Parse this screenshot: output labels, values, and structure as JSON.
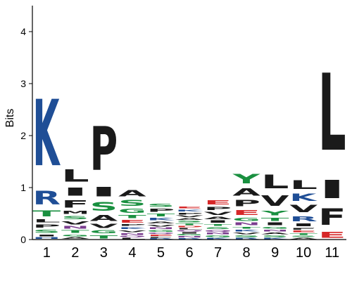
{
  "chart_data": {
    "type": "sequence-logo",
    "ylabel": "Bits",
    "ylim": [
      0,
      4.5
    ],
    "y_ticks": [
      "0",
      "1",
      "2",
      "3",
      "4"
    ],
    "grid": false,
    "legend": "none",
    "colors": {
      "basic": "#1f4e96",
      "hydrophobic": "#1a1a1a",
      "polar": "#1a9040",
      "acidic": "#d62728",
      "amide": "#7a3c8e"
    },
    "residue_class": {
      "K": "basic",
      "R": "basic",
      "H": "basic",
      "L": "hydrophobic",
      "I": "hydrophobic",
      "P": "hydrophobic",
      "F": "hydrophobic",
      "M": "hydrophobic",
      "A": "hydrophobic",
      "V": "hydrophobic",
      "W": "hydrophobic",
      "S": "polar",
      "T": "polar",
      "G": "polar",
      "Y": "polar",
      "C": "polar",
      "N": "amide",
      "Q": "amide",
      "E": "acidic",
      "D": "acidic"
    },
    "positions": [
      {
        "label": "1",
        "letters": [
          {
            "aa": "K",
            "bits": 2.05
          },
          {
            "aa": "R",
            "bits": 0.42
          },
          {
            "aa": "T",
            "bits": 0.18
          },
          {
            "aa": "S",
            "bits": 0.1
          },
          {
            "aa": "P",
            "bits": 0.1
          },
          {
            "aa": "L",
            "bits": 0.1
          },
          {
            "aa": "I",
            "bits": 0.06
          },
          {
            "aa": "H",
            "bits": 0.05
          }
        ]
      },
      {
        "label": "2",
        "letters": [
          {
            "aa": "L",
            "bits": 0.38
          },
          {
            "aa": "I",
            "bits": 0.25
          },
          {
            "aa": "F",
            "bits": 0.22
          },
          {
            "aa": "V",
            "bits": 0.1
          },
          {
            "aa": "S",
            "bits": 0.1
          },
          {
            "aa": "T",
            "bits": 0.08
          },
          {
            "aa": "M",
            "bits": 0.1
          },
          {
            "aa": "N",
            "bits": 0.08
          },
          {
            "aa": "G",
            "bits": 0.06
          },
          {
            "aa": "A",
            "bits": 0.05
          }
        ]
      },
      {
        "label": "3",
        "letters": [
          {
            "aa": "P",
            "bits": 1.35
          },
          {
            "aa": "I",
            "bits": 0.3
          },
          {
            "aa": "V",
            "bits": 0.12
          },
          {
            "aa": "S",
            "bits": 0.27
          },
          {
            "aa": "T",
            "bits": 0.1
          },
          {
            "aa": "A",
            "bits": 0.18
          },
          {
            "aa": "G",
            "bits": 0.1
          }
        ]
      },
      {
        "label": "4",
        "letters": [
          {
            "aa": "S",
            "bits": 0.18
          },
          {
            "aa": "A",
            "bits": 0.2
          },
          {
            "aa": "T",
            "bits": 0.1
          },
          {
            "aa": "G",
            "bits": 0.12
          },
          {
            "aa": "E",
            "bits": 0.08
          },
          {
            "aa": "V",
            "bits": 0.06
          },
          {
            "aa": "K",
            "bits": 0.06
          },
          {
            "aa": "P",
            "bits": 0.06
          },
          {
            "aa": "N",
            "bits": 0.05
          },
          {
            "aa": "L",
            "bits": 0.04
          },
          {
            "aa": "Q",
            "bits": 0.04
          }
        ]
      },
      {
        "label": "5",
        "letters": [
          {
            "aa": "P",
            "bits": 0.1
          },
          {
            "aa": "S",
            "bits": 0.1
          },
          {
            "aa": "T",
            "bits": 0.08
          },
          {
            "aa": "K",
            "bits": 0.07
          },
          {
            "aa": "V",
            "bits": 0.06
          },
          {
            "aa": "A",
            "bits": 0.06
          },
          {
            "aa": "G",
            "bits": 0.05
          },
          {
            "aa": "N",
            "bits": 0.05
          },
          {
            "aa": "E",
            "bits": 0.04
          },
          {
            "aa": "Q",
            "bits": 0.04
          },
          {
            "aa": "R",
            "bits": 0.03
          },
          {
            "aa": "F",
            "bits": 0.03
          }
        ]
      },
      {
        "label": "6",
        "letters": [
          {
            "aa": "P",
            "bits": 0.06
          },
          {
            "aa": "K",
            "bits": 0.06
          },
          {
            "aa": "E",
            "bits": 0.06
          },
          {
            "aa": "T",
            "bits": 0.05
          },
          {
            "aa": "S",
            "bits": 0.05
          },
          {
            "aa": "A",
            "bits": 0.05
          },
          {
            "aa": "V",
            "bits": 0.05
          },
          {
            "aa": "N",
            "bits": 0.04
          },
          {
            "aa": "G",
            "bits": 0.04
          },
          {
            "aa": "I",
            "bits": 0.04
          },
          {
            "aa": "Q",
            "bits": 0.04
          },
          {
            "aa": "L",
            "bits": 0.04
          },
          {
            "aa": "D",
            "bits": 0.04
          },
          {
            "aa": "R",
            "bits": 0.03
          }
        ]
      },
      {
        "label": "7",
        "letters": [
          {
            "aa": "V",
            "bits": 0.1
          },
          {
            "aa": "E",
            "bits": 0.12
          },
          {
            "aa": "P",
            "bits": 0.1
          },
          {
            "aa": "I",
            "bits": 0.07
          },
          {
            "aa": "A",
            "bits": 0.07
          },
          {
            "aa": "S",
            "bits": 0.06
          },
          {
            "aa": "T",
            "bits": 0.06
          },
          {
            "aa": "G",
            "bits": 0.05
          },
          {
            "aa": "N",
            "bits": 0.05
          },
          {
            "aa": "Q",
            "bits": 0.05
          },
          {
            "aa": "K",
            "bits": 0.04
          }
        ]
      },
      {
        "label": "8",
        "letters": [
          {
            "aa": "Y",
            "bits": 0.3
          },
          {
            "aa": "A",
            "bits": 0.22
          },
          {
            "aa": "P",
            "bits": 0.2
          },
          {
            "aa": "E",
            "bits": 0.16
          },
          {
            "aa": "G",
            "bits": 0.1
          },
          {
            "aa": "N",
            "bits": 0.08
          },
          {
            "aa": "K",
            "bits": 0.06
          },
          {
            "aa": "T",
            "bits": 0.06
          },
          {
            "aa": "S",
            "bits": 0.05
          },
          {
            "aa": "V",
            "bits": 0.05
          },
          {
            "aa": "R",
            "bits": 0.04
          }
        ]
      },
      {
        "label": "9",
        "letters": [
          {
            "aa": "L",
            "bits": 0.42
          },
          {
            "aa": "V",
            "bits": 0.32
          },
          {
            "aa": "Y",
            "bits": 0.14
          },
          {
            "aa": "T",
            "bits": 0.1
          },
          {
            "aa": "I",
            "bits": 0.08
          },
          {
            "aa": "N",
            "bits": 0.06
          },
          {
            "aa": "G",
            "bits": 0.06
          },
          {
            "aa": "S",
            "bits": 0.05
          },
          {
            "aa": "A",
            "bits": 0.05
          },
          {
            "aa": "K",
            "bits": 0.04
          }
        ]
      },
      {
        "label": "10",
        "letters": [
          {
            "aa": "L",
            "bits": 0.26
          },
          {
            "aa": "V",
            "bits": 0.22
          },
          {
            "aa": "K",
            "bits": 0.22
          },
          {
            "aa": "R",
            "bits": 0.16
          },
          {
            "aa": "I",
            "bits": 0.08
          },
          {
            "aa": "F",
            "bits": 0.06
          },
          {
            "aa": "T",
            "bits": 0.05
          },
          {
            "aa": "E",
            "bits": 0.05
          },
          {
            "aa": "A",
            "bits": 0.04
          },
          {
            "aa": "S",
            "bits": 0.04
          }
        ]
      },
      {
        "label": "11",
        "letters": [
          {
            "aa": "L",
            "bits": 2.38
          },
          {
            "aa": "I",
            "bits": 0.56
          },
          {
            "aa": "F",
            "bits": 0.5
          },
          {
            "aa": "E",
            "bits": 0.18
          }
        ]
      }
    ]
  }
}
